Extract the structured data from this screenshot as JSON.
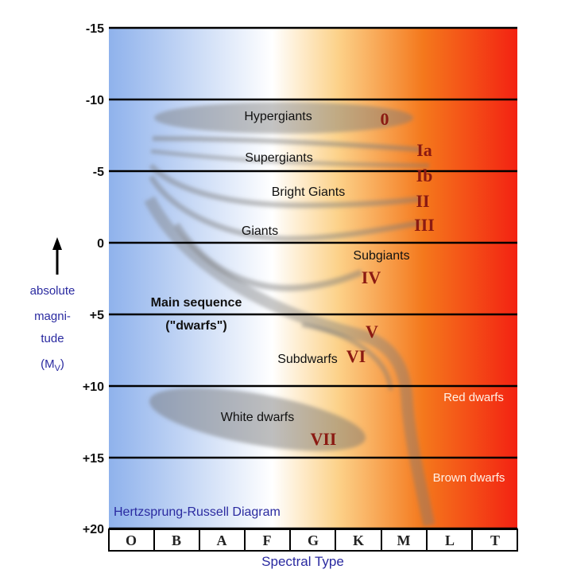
{
  "colors": {
    "hot": "#8fb2ec",
    "mid": "#ffffff",
    "warm": "#fcd28a",
    "cool": "#f4781c",
    "coolest": "#f32212",
    "numeral": "#8b1a12",
    "label_blue": "#2a2aa0"
  },
  "diagram": {
    "title": "Hertzsprung-Russell Diagram",
    "y_axis": {
      "label_lines": [
        "absolute",
        "magni-",
        "tude"
      ],
      "symbol_main": "(M",
      "symbol_sub": "V",
      "symbol_end": ")",
      "arrow_icon": "up-arrow-icon",
      "ticks": [
        "-15",
        "-10",
        "-5",
        "0",
        "+5",
        "+10",
        "+15",
        "+20"
      ]
    },
    "x_axis": {
      "label": "Spectral Type",
      "classes": [
        "O",
        "B",
        "A",
        "F",
        "G",
        "K",
        "M",
        "L",
        "T"
      ]
    },
    "regions": {
      "hypergiants": "Hypergiants",
      "supergiants": "Supergiants",
      "bright_giants": "Bright Giants",
      "giants": "Giants",
      "subgiants": "Subgiants",
      "main_sequence": "Main sequence",
      "dwarfs": "(\"dwarfs\")",
      "subdwarfs": "Subdwarfs",
      "white_dwarfs": "White dwarfs",
      "red_dwarfs": "Red dwarfs",
      "brown_dwarfs": "Brown dwarfs"
    },
    "luminosity_classes": {
      "hypergiant": "0",
      "supergiant_a": "Ia",
      "supergiant_b": "Ib",
      "bright_giant": "II",
      "giant": "III",
      "subgiant": "IV",
      "main_sequence": "V",
      "subdwarf": "VI",
      "white_dwarf": "VII"
    }
  }
}
